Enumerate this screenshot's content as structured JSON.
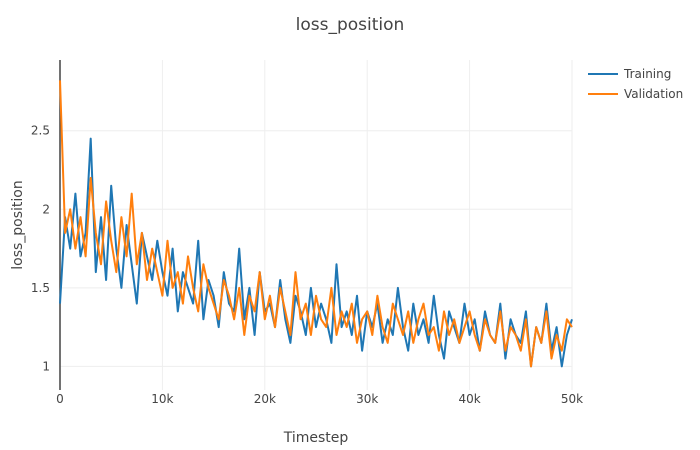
{
  "chart_data": {
    "type": "line",
    "title": "loss_position",
    "xlabel": "Timestep",
    "ylabel": "loss_position",
    "xlim": [
      0,
      50000
    ],
    "ylim": [
      0.85,
      2.95
    ],
    "x_ticks": [
      0,
      10000,
      20000,
      30000,
      40000,
      50000
    ],
    "x_tick_labels": [
      "0",
      "10k",
      "20k",
      "30k",
      "40k",
      "50k"
    ],
    "y_ticks": [
      1,
      1.5,
      2,
      2.5
    ],
    "y_tick_labels": [
      "1",
      "1.5",
      "2",
      "2.5"
    ],
    "grid": true,
    "legend_position": "top-right",
    "series": [
      {
        "name": "Training",
        "color": "#1f77b4",
        "x": [
          0,
          500,
          1000,
          1500,
          2000,
          2500,
          3000,
          3500,
          4000,
          4500,
          5000,
          5500,
          6000,
          6500,
          7000,
          7500,
          8000,
          8500,
          9000,
          9500,
          10000,
          10500,
          11000,
          11500,
          12000,
          12500,
          13000,
          13500,
          14000,
          14500,
          15000,
          15500,
          16000,
          16500,
          17000,
          17500,
          18000,
          18500,
          19000,
          19500,
          20000,
          20500,
          21000,
          21500,
          22000,
          22500,
          23000,
          23500,
          24000,
          24500,
          25000,
          25500,
          26000,
          26500,
          27000,
          27500,
          28000,
          28500,
          29000,
          29500,
          30000,
          30500,
          31000,
          31500,
          32000,
          32500,
          33000,
          33500,
          34000,
          34500,
          35000,
          35500,
          36000,
          36500,
          37000,
          37500,
          38000,
          38500,
          39000,
          39500,
          40000,
          40500,
          41000,
          41500,
          42000,
          42500,
          43000,
          43500,
          44000,
          44500,
          45000,
          45500,
          46000,
          46500,
          47000,
          47500,
          48000,
          48500,
          49000,
          49500,
          50000
        ],
        "values": [
          1.4,
          1.95,
          1.75,
          2.1,
          1.7,
          1.85,
          2.45,
          1.6,
          1.95,
          1.55,
          2.15,
          1.75,
          1.5,
          1.9,
          1.65,
          1.4,
          1.85,
          1.7,
          1.55,
          1.8,
          1.6,
          1.45,
          1.75,
          1.35,
          1.6,
          1.5,
          1.4,
          1.8,
          1.3,
          1.55,
          1.45,
          1.25,
          1.6,
          1.4,
          1.35,
          1.75,
          1.3,
          1.5,
          1.2,
          1.6,
          1.35,
          1.4,
          1.25,
          1.55,
          1.3,
          1.15,
          1.45,
          1.35,
          1.2,
          1.5,
          1.25,
          1.4,
          1.3,
          1.15,
          1.65,
          1.25,
          1.35,
          1.2,
          1.45,
          1.1,
          1.35,
          1.25,
          1.4,
          1.15,
          1.3,
          1.2,
          1.5,
          1.25,
          1.1,
          1.4,
          1.2,
          1.3,
          1.15,
          1.45,
          1.2,
          1.05,
          1.35,
          1.25,
          1.15,
          1.4,
          1.2,
          1.3,
          1.1,
          1.35,
          1.2,
          1.15,
          1.4,
          1.05,
          1.3,
          1.2,
          1.15,
          1.35,
          1.0,
          1.25,
          1.15,
          1.4,
          1.1,
          1.25,
          1.0,
          1.2,
          1.3
        ]
      },
      {
        "name": "Validation",
        "color": "#ff7f0e",
        "x": [
          0,
          500,
          1000,
          1500,
          2000,
          2500,
          3000,
          3500,
          4000,
          4500,
          5000,
          5500,
          6000,
          6500,
          7000,
          7500,
          8000,
          8500,
          9000,
          9500,
          10000,
          10500,
          11000,
          11500,
          12000,
          12500,
          13000,
          13500,
          14000,
          14500,
          15000,
          15500,
          16000,
          16500,
          17000,
          17500,
          18000,
          18500,
          19000,
          19500,
          20000,
          20500,
          21000,
          21500,
          22000,
          22500,
          23000,
          23500,
          24000,
          24500,
          25000,
          25500,
          26000,
          26500,
          27000,
          27500,
          28000,
          28500,
          29000,
          29500,
          30000,
          30500,
          31000,
          31500,
          32000,
          32500,
          33000,
          33500,
          34000,
          34500,
          35000,
          35500,
          36000,
          36500,
          37000,
          37500,
          38000,
          38500,
          39000,
          39500,
          40000,
          40500,
          41000,
          41500,
          42000,
          42500,
          43000,
          43500,
          44000,
          44500,
          45000,
          45500,
          46000,
          46500,
          47000,
          47500,
          48000,
          48500,
          49000,
          49500,
          50000
        ],
        "values": [
          2.82,
          1.85,
          2.0,
          1.75,
          1.95,
          1.7,
          2.2,
          1.85,
          1.65,
          2.05,
          1.8,
          1.6,
          1.95,
          1.7,
          2.1,
          1.65,
          1.85,
          1.55,
          1.75,
          1.6,
          1.45,
          1.8,
          1.5,
          1.6,
          1.4,
          1.7,
          1.5,
          1.35,
          1.65,
          1.5,
          1.4,
          1.3,
          1.55,
          1.45,
          1.3,
          1.5,
          1.2,
          1.45,
          1.35,
          1.6,
          1.3,
          1.45,
          1.25,
          1.5,
          1.35,
          1.2,
          1.6,
          1.3,
          1.4,
          1.2,
          1.45,
          1.3,
          1.25,
          1.5,
          1.2,
          1.35,
          1.25,
          1.4,
          1.15,
          1.3,
          1.35,
          1.2,
          1.45,
          1.25,
          1.15,
          1.4,
          1.3,
          1.2,
          1.35,
          1.15,
          1.3,
          1.4,
          1.2,
          1.25,
          1.1,
          1.35,
          1.2,
          1.3,
          1.15,
          1.25,
          1.35,
          1.2,
          1.1,
          1.3,
          1.2,
          1.15,
          1.35,
          1.1,
          1.25,
          1.2,
          1.1,
          1.3,
          1.0,
          1.25,
          1.15,
          1.35,
          1.05,
          1.2,
          1.1,
          1.3,
          1.25
        ]
      }
    ]
  }
}
